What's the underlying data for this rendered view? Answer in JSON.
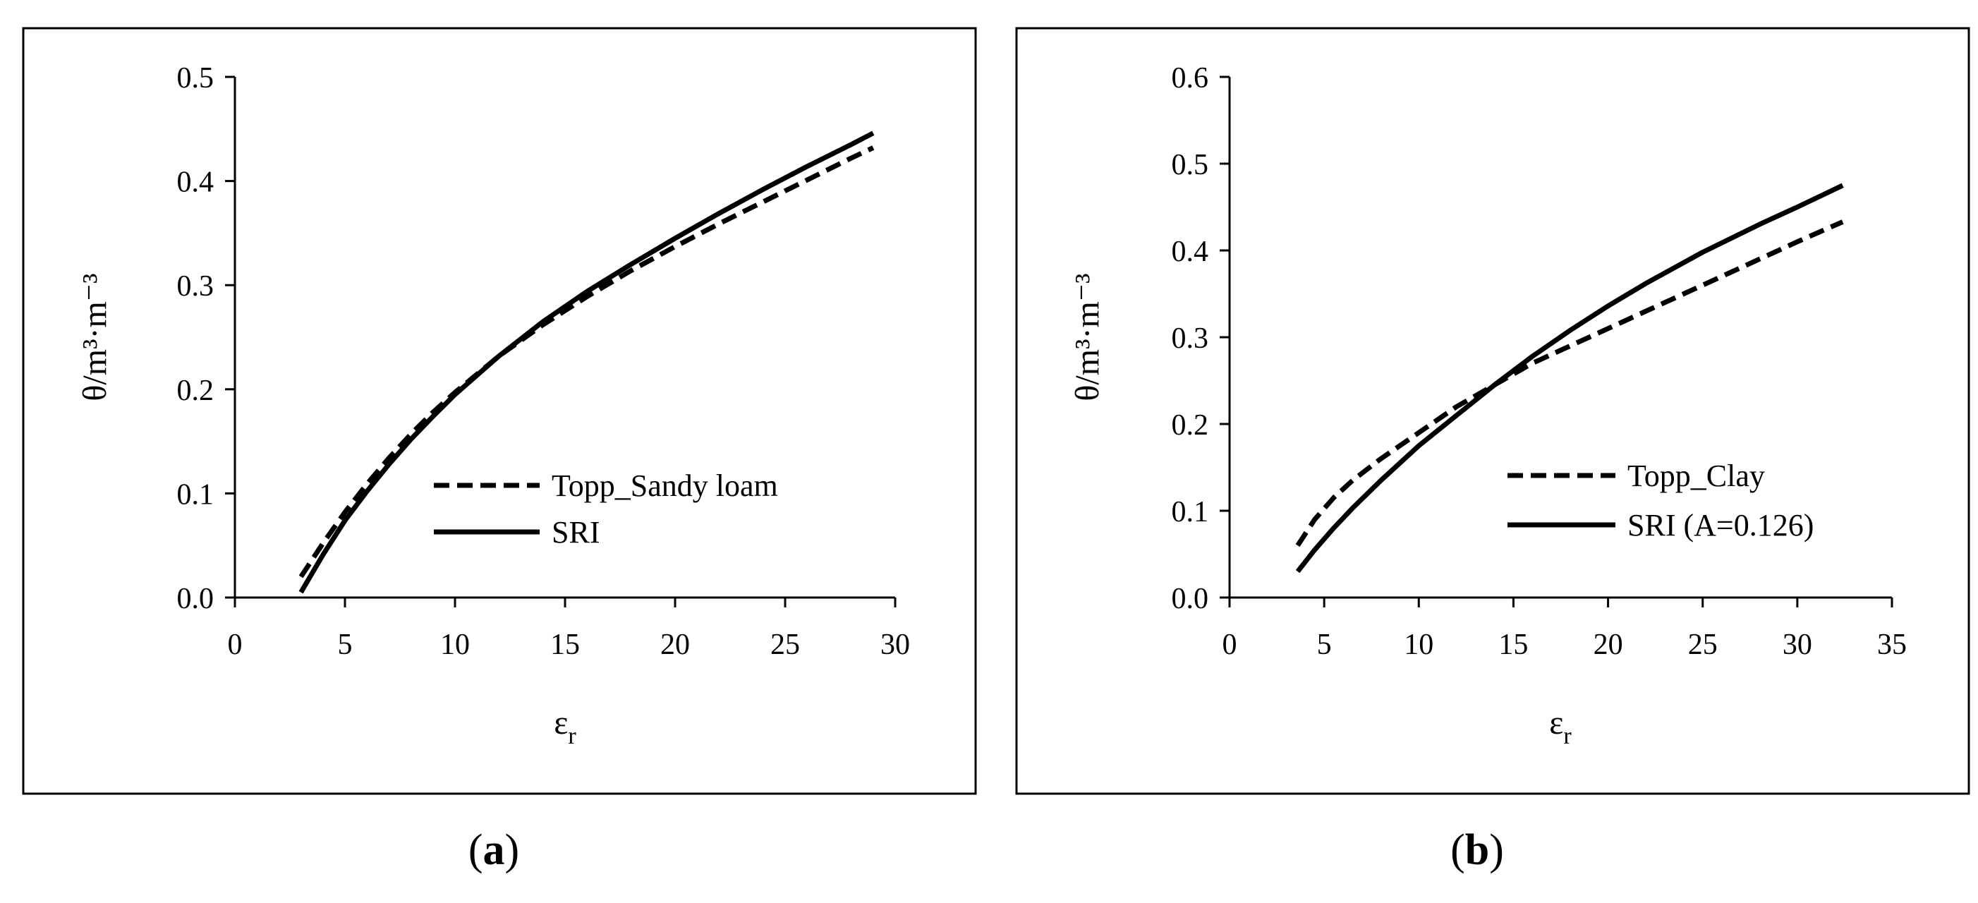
{
  "chart_data": [
    {
      "type": "line",
      "panel_label": "(a)",
      "xlabel": "εr",
      "ylabel": "θ/m³·m⁻³",
      "xlim": [
        0,
        30
      ],
      "ylim": [
        0.0,
        0.5
      ],
      "x_ticks": [
        "0",
        "5",
        "10",
        "15",
        "20",
        "25",
        "30"
      ],
      "y_ticks": [
        "0.0",
        "0.1",
        "0.2",
        "0.3",
        "0.4",
        "0.5"
      ],
      "grid": false,
      "legend_position": "lower-right",
      "series": [
        {
          "name": "Topp_Sandy loam",
          "style": "dashed",
          "x": [
            3,
            4,
            5,
            6,
            7,
            8,
            9,
            10,
            12,
            14,
            16,
            18,
            20,
            22,
            24,
            26,
            28,
            29
          ],
          "y": [
            0.02,
            0.052,
            0.082,
            0.109,
            0.134,
            0.157,
            0.178,
            0.197,
            0.232,
            0.262,
            0.289,
            0.314,
            0.337,
            0.359,
            0.38,
            0.401,
            0.422,
            0.432
          ]
        },
        {
          "name": "SRI",
          "style": "solid",
          "x": [
            3,
            4,
            5,
            6,
            7,
            8,
            9,
            10,
            12,
            14,
            16,
            18,
            20,
            22,
            24,
            26,
            28,
            29
          ],
          "y": [
            0.005,
            0.041,
            0.074,
            0.102,
            0.128,
            0.152,
            0.174,
            0.195,
            0.232,
            0.265,
            0.294,
            0.32,
            0.345,
            0.369,
            0.392,
            0.414,
            0.435,
            0.446
          ]
        }
      ]
    },
    {
      "type": "line",
      "panel_label": "(b)",
      "xlabel": "εr",
      "ylabel": "θ/m³·m⁻³",
      "xlim": [
        0,
        35
      ],
      "ylim": [
        0.0,
        0.6
      ],
      "x_ticks": [
        "0",
        "5",
        "10",
        "15",
        "20",
        "25",
        "30",
        "35"
      ],
      "y_ticks": [
        "0.0",
        "0.1",
        "0.2",
        "0.3",
        "0.4",
        "0.5",
        "0.6"
      ],
      "grid": false,
      "legend_position": "lower-right",
      "series": [
        {
          "name": "Topp_Clay",
          "style": "dashed",
          "x": [
            3.6,
            4.5,
            5.5,
            6.5,
            8,
            10,
            12,
            14,
            16,
            18,
            20,
            22,
            25,
            28,
            30,
            32.4
          ],
          "y": [
            0.06,
            0.09,
            0.115,
            0.135,
            0.16,
            0.19,
            0.22,
            0.245,
            0.27,
            0.29,
            0.31,
            0.33,
            0.36,
            0.39,
            0.41,
            0.433
          ]
        },
        {
          "name": "SRI (A=0.126)",
          "style": "solid",
          "x": [
            3.6,
            4.5,
            5.5,
            6.5,
            8,
            10,
            12,
            14,
            16,
            18,
            20,
            22,
            25,
            28,
            30,
            32.4
          ],
          "y": [
            0.03,
            0.055,
            0.08,
            0.103,
            0.135,
            0.175,
            0.21,
            0.245,
            0.278,
            0.308,
            0.336,
            0.362,
            0.398,
            0.43,
            0.45,
            0.475
          ]
        }
      ]
    }
  ]
}
